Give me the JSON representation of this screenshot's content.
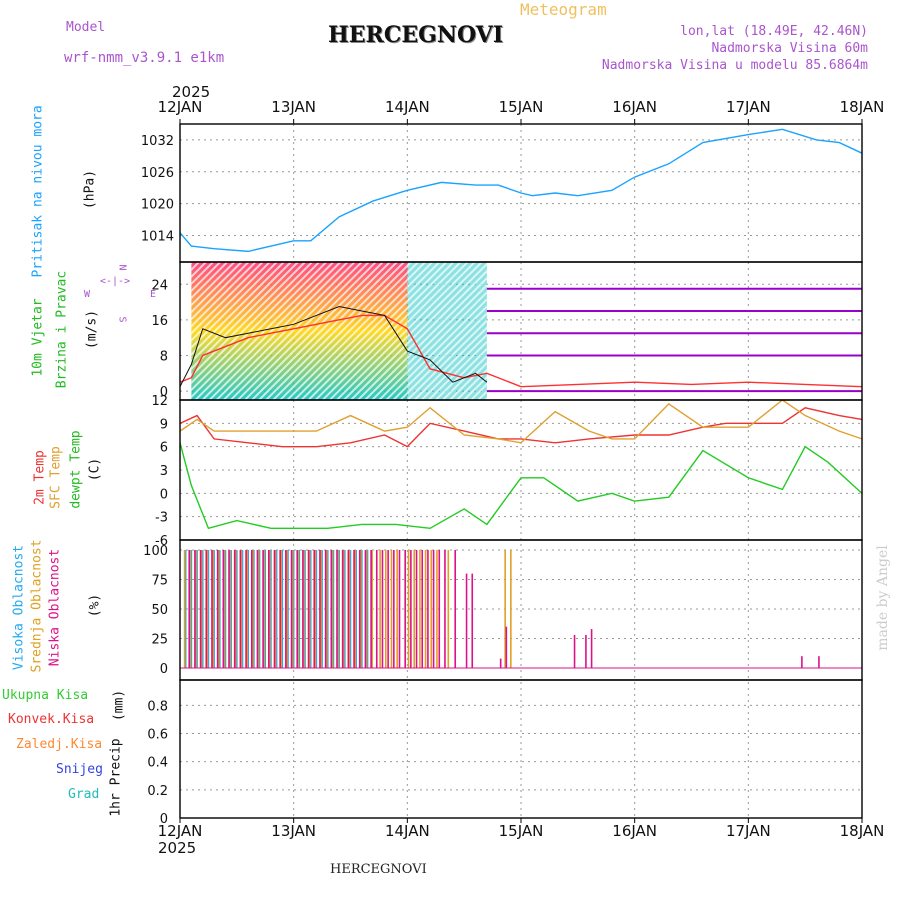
{
  "header": {
    "model_label": "Model",
    "model_name": "wrf-nmm_v3.9.1 e1km",
    "station": "HERCEGNOVI",
    "product": "Meteogram",
    "lonlat": "lon,lat (18.49E, 42.46N)",
    "elevation": "Nadmorska Visina 60m",
    "model_elevation": "Nadmorska Visina u modelu 85.6864m"
  },
  "colors": {
    "pressure": "#1aa3ff",
    "wind_grad_1": "#00bfbf",
    "wind_grad_2": "#ffd200",
    "wind_grad_3": "#ff2a6a",
    "wind_calm": "#9900cc",
    "wind_gust": "#ff3030",
    "temp_2m": "#ee3333",
    "temp_sfc": "#e0a030",
    "dewpt": "#22cc22",
    "cloud_high": "#22aaee",
    "cloud_mid": "#e0a020",
    "cloud_low": "#dd1188"
  },
  "footer": {
    "station": "HERCEGNOVI",
    "credit": "made by Angel"
  },
  "chart_data": [
    {
      "type": "line",
      "panel": "pressure",
      "label_left": "Pritisak na nivou mora",
      "unit": "(hPa)",
      "x_ticks": [
        "12JAN",
        "13JAN",
        "14JAN",
        "15JAN",
        "16JAN",
        "17JAN",
        "18JAN"
      ],
      "x_year": "2025",
      "y_ticks": [
        "1014",
        "1020",
        "1026",
        "1032"
      ],
      "ylim": [
        1009,
        1035
      ],
      "x_days": [
        0,
        0.1,
        0.3,
        0.6,
        1.0,
        1.15,
        1.4,
        1.7,
        2.0,
        2.3,
        2.6,
        2.8,
        3.0,
        3.1,
        3.3,
        3.5,
        3.8,
        4.0,
        4.3,
        4.6,
        5.0,
        5.3,
        5.6,
        5.8,
        6.0
      ],
      "values": [
        1014.5,
        1012.0,
        1011.5,
        1011.0,
        1013.0,
        1013.0,
        1017.5,
        1020.5,
        1022.5,
        1024.0,
        1023.5,
        1023.5,
        1022.0,
        1021.5,
        1022.0,
        1021.5,
        1022.5,
        1025.0,
        1027.5,
        1031.5,
        1033.0,
        1034.0,
        1032.0,
        1031.5,
        1029.5
      ]
    },
    {
      "type": "line",
      "panel": "wind",
      "label_left": [
        "10m Vjetar",
        "Brzina i Pravac"
      ],
      "unit": "(m/s)",
      "compass": [
        "N",
        "E",
        "S",
        "W"
      ],
      "y_ticks": [
        "0",
        "8",
        "16",
        "24"
      ],
      "ylim": [
        -2,
        29
      ],
      "series": [
        {
          "name": "gust",
          "x_days": [
            0,
            0.1,
            0.2,
            0.4,
            0.6,
            0.8,
            1.0,
            1.2,
            1.4,
            1.6,
            1.8,
            2.0,
            2.2,
            2.5,
            2.7,
            2.9,
            3.0,
            3.5,
            4.0,
            4.5,
            5.0,
            5.5,
            6.0
          ],
          "values": [
            2.0,
            3.0,
            8.0,
            10.0,
            12.0,
            13.0,
            14.0,
            15.0,
            16.0,
            17.0,
            17.0,
            14.0,
            5.0,
            3.0,
            4.0,
            2.0,
            1.0,
            1.5,
            2.0,
            1.5,
            2.0,
            1.5,
            1.0
          ]
        },
        {
          "name": "speed",
          "x_days": [
            0,
            0.1,
            0.2,
            0.4,
            0.6,
            0.8,
            1.0,
            1.2,
            1.4,
            1.6,
            1.8,
            2.0,
            2.2,
            2.4,
            2.6,
            2.7
          ],
          "values": [
            1.0,
            6.0,
            14.0,
            12.0,
            13.0,
            14.0,
            15.0,
            17.0,
            19.0,
            18.0,
            17.0,
            9.0,
            7.0,
            2.0,
            4.0,
            2.0
          ]
        }
      ]
    },
    {
      "type": "line",
      "panel": "temperature",
      "label_left": [
        "2m Temp",
        "SFC Temp",
        "dewpt Temp"
      ],
      "unit": "(C)",
      "y_ticks": [
        "-6",
        "-3",
        "0",
        "3",
        "6",
        "9",
        "12"
      ],
      "ylim": [
        -6,
        12
      ],
      "series": [
        {
          "name": "2m Temp",
          "x_days": [
            0,
            0.15,
            0.3,
            0.6,
            0.9,
            1.2,
            1.5,
            1.8,
            2.0,
            2.2,
            2.5,
            2.8,
            3.0,
            3.3,
            3.6,
            4.0,
            4.3,
            4.6,
            4.8,
            5.0,
            5.3,
            5.5,
            5.8,
            6.0
          ],
          "values": [
            9.0,
            10.0,
            7.0,
            6.5,
            6.0,
            6.0,
            6.5,
            7.5,
            6.0,
            9.0,
            8.0,
            7.0,
            7.0,
            6.5,
            7.0,
            7.5,
            7.5,
            8.5,
            9.0,
            9.0,
            9.0,
            11.0,
            10.0,
            9.5
          ]
        },
        {
          "name": "SFC Temp",
          "x_days": [
            0,
            0.15,
            0.3,
            0.6,
            0.9,
            1.2,
            1.5,
            1.8,
            2.0,
            2.2,
            2.5,
            2.8,
            3.0,
            3.3,
            3.6,
            3.8,
            4.0,
            4.3,
            4.6,
            4.8,
            5.0,
            5.3,
            5.5,
            5.8,
            6.0
          ],
          "values": [
            8.0,
            9.5,
            8.0,
            8.0,
            8.0,
            8.0,
            10.0,
            8.0,
            8.5,
            11.0,
            7.5,
            7.0,
            6.5,
            10.5,
            8.0,
            7.0,
            7.0,
            11.5,
            8.5,
            8.5,
            8.5,
            12.0,
            10.0,
            8.0,
            7.0
          ]
        },
        {
          "name": "dewpt Temp",
          "x_days": [
            0,
            0.1,
            0.25,
            0.5,
            0.8,
            1.0,
            1.3,
            1.6,
            1.9,
            2.2,
            2.5,
            2.7,
            2.9,
            3.0,
            3.2,
            3.5,
            3.8,
            4.0,
            4.3,
            4.6,
            5.0,
            5.3,
            5.5,
            5.7,
            6.0
          ],
          "values": [
            6.5,
            1.0,
            -4.5,
            -3.5,
            -4.5,
            -4.5,
            -4.5,
            -4.0,
            -4.0,
            -4.5,
            -2.0,
            -4.0,
            0.0,
            2.0,
            2.0,
            -1.0,
            0.0,
            -1.0,
            -0.5,
            5.5,
            2.0,
            0.5,
            6.0,
            4.0,
            0.0
          ]
        }
      ]
    },
    {
      "type": "bar",
      "panel": "cloud",
      "label_left": [
        "Visoka Oblacnost",
        "Srednja Oblacnost",
        "Niska Oblacnost"
      ],
      "unit": "(%)",
      "y_ticks": [
        "0",
        "25",
        "50",
        "75",
        "100"
      ],
      "ylim": [
        0,
        100
      ],
      "series": [
        {
          "name": "Visoka Oblacnost",
          "x_days": [
            0.05,
            0.1,
            0.15,
            0.2,
            0.25,
            0.3,
            0.35,
            0.4,
            0.45,
            0.5,
            0.55,
            0.6,
            0.65,
            0.7,
            0.75,
            0.8,
            0.85,
            0.9,
            0.95,
            1.0,
            1.05,
            1.1,
            1.15,
            1.2,
            1.25,
            1.3,
            1.35,
            1.4,
            1.45,
            1.5,
            1.55,
            1.6,
            1.65
          ],
          "values": [
            100,
            100,
            100,
            100,
            100,
            100,
            100,
            100,
            100,
            100,
            100,
            100,
            100,
            100,
            100,
            100,
            100,
            100,
            100,
            100,
            100,
            100,
            100,
            100,
            100,
            100,
            100,
            100,
            100,
            100,
            100,
            100,
            100
          ]
        },
        {
          "name": "Srednja Oblacnost",
          "x_days": [
            0.03,
            0.08,
            0.13,
            0.18,
            0.23,
            0.28,
            0.33,
            0.38,
            0.43,
            0.48,
            0.53,
            0.58,
            0.63,
            0.68,
            0.73,
            0.78,
            0.83,
            0.88,
            0.93,
            0.98,
            1.03,
            1.08,
            1.13,
            1.18,
            1.23,
            1.28,
            1.33,
            1.38,
            1.43,
            1.48,
            1.53,
            1.58,
            1.63,
            1.68,
            1.75,
            1.8,
            1.85,
            1.9,
            2.0,
            2.05,
            2.1,
            2.15,
            2.2,
            2.25,
            2.35,
            2.85,
            2.9
          ],
          "values": [
            100,
            100,
            100,
            100,
            100,
            100,
            100,
            100,
            100,
            100,
            100,
            100,
            100,
            100,
            100,
            100,
            100,
            100,
            100,
            100,
            100,
            100,
            100,
            100,
            100,
            100,
            100,
            100,
            100,
            100,
            100,
            100,
            100,
            100,
            100,
            100,
            100,
            100,
            100,
            100,
            100,
            100,
            100,
            100,
            100,
            100,
            100
          ]
        },
        {
          "name": "Niska Oblacnost",
          "x_days": [
            0.06,
            0.11,
            0.16,
            0.21,
            0.26,
            0.31,
            0.36,
            0.41,
            0.46,
            0.51,
            0.56,
            0.61,
            0.66,
            0.71,
            0.76,
            0.81,
            0.86,
            0.91,
            0.96,
            1.01,
            1.06,
            1.11,
            1.16,
            1.21,
            1.26,
            1.31,
            1.36,
            1.41,
            1.46,
            1.51,
            1.56,
            1.61,
            1.66,
            1.71,
            1.76,
            1.81,
            1.86,
            1.91,
            1.96,
            2.01,
            2.06,
            2.11,
            2.16,
            2.21,
            2.26,
            2.31,
            2.4,
            2.5,
            2.55,
            2.8,
            2.85,
            3.45,
            3.55,
            3.6,
            5.45,
            5.6
          ],
          "values": [
            100,
            100,
            100,
            100,
            100,
            100,
            100,
            100,
            100,
            100,
            100,
            100,
            100,
            100,
            100,
            100,
            100,
            100,
            100,
            100,
            100,
            100,
            100,
            100,
            100,
            100,
            100,
            100,
            100,
            100,
            100,
            100,
            100,
            100,
            100,
            100,
            100,
            100,
            100,
            100,
            100,
            100,
            100,
            100,
            100,
            100,
            100,
            80,
            80,
            8,
            35,
            28,
            28,
            33,
            10,
            10
          ]
        }
      ]
    },
    {
      "type": "bar",
      "panel": "precip",
      "label_left": "1hr Precip",
      "unit": "(mm)",
      "legend": [
        "Ukupna Kisa",
        "Konvek.Kisa",
        "Zaledj.Kisa",
        "Snijeg",
        "Grad"
      ],
      "legend_colors": [
        "#33cc33",
        "#ee3333",
        "#ff8833",
        "#3344dd",
        "#22bbbb"
      ],
      "y_ticks": [
        "0",
        "0.2",
        "0.4",
        "0.6",
        "0.8"
      ],
      "ylim": [
        0,
        0.98
      ],
      "x_ticks": [
        "12JAN",
        "13JAN",
        "14JAN",
        "15JAN",
        "16JAN",
        "17JAN",
        "18JAN"
      ],
      "x_year": "2025",
      "values": []
    }
  ]
}
